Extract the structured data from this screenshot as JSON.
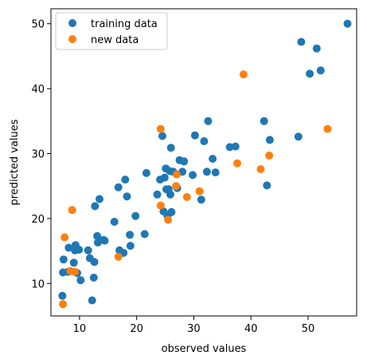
{
  "chart_data": {
    "type": "scatter",
    "title": "",
    "xlabel": "observed values",
    "ylabel": "predicted values",
    "xlim": [
      5,
      58.5
    ],
    "ylim": [
      5,
      52.3
    ],
    "xticks": [
      10,
      20,
      30,
      40,
      50
    ],
    "yticks": [
      10,
      20,
      30,
      40,
      50
    ],
    "grid": false,
    "legend": "top-left",
    "series": [
      {
        "name": "training data",
        "color": "#1f77b4",
        "points": [
          [
            7.0,
            8.1
          ],
          [
            7.1,
            11.7
          ],
          [
            7.2,
            13.7
          ],
          [
            8.0,
            11.8
          ],
          [
            8.1,
            15.5
          ],
          [
            9.0,
            13.2
          ],
          [
            9.2,
            15.1
          ],
          [
            9.3,
            15.9
          ],
          [
            9.6,
            11.6
          ],
          [
            9.9,
            15.2
          ],
          [
            10.2,
            10.5
          ],
          [
            11.5,
            15.1
          ],
          [
            11.8,
            13.9
          ],
          [
            12.2,
            7.4
          ],
          [
            12.5,
            10.9
          ],
          [
            12.6,
            13.3
          ],
          [
            12.7,
            21.9
          ],
          [
            13.1,
            17.3
          ],
          [
            13.2,
            16.3
          ],
          [
            13.5,
            23.0
          ],
          [
            14.2,
            16.7
          ],
          [
            14.4,
            16.6
          ],
          [
            16.1,
            19.5
          ],
          [
            16.8,
            24.8
          ],
          [
            17.0,
            15.1
          ],
          [
            17.7,
            14.7
          ],
          [
            18.0,
            26.0
          ],
          [
            18.3,
            23.4
          ],
          [
            18.8,
            17.5
          ],
          [
            18.9,
            15.8
          ],
          [
            19.8,
            20.4
          ],
          [
            21.4,
            17.6
          ],
          [
            21.7,
            27.0
          ],
          [
            23.6,
            23.7
          ],
          [
            24.1,
            26.0
          ],
          [
            24.5,
            32.7
          ],
          [
            24.7,
            21.1
          ],
          [
            24.9,
            26.3
          ],
          [
            25.1,
            27.7
          ],
          [
            25.2,
            24.5
          ],
          [
            25.4,
            20.4
          ],
          [
            25.6,
            24.5
          ],
          [
            25.8,
            27.3
          ],
          [
            25.9,
            23.7
          ],
          [
            26.0,
            30.9
          ],
          [
            26.1,
            21.0
          ],
          [
            26.4,
            27.2
          ],
          [
            27.1,
            24.7
          ],
          [
            27.5,
            29.0
          ],
          [
            28.0,
            27.2
          ],
          [
            28.3,
            28.8
          ],
          [
            29.8,
            26.7
          ],
          [
            30.2,
            32.8
          ],
          [
            31.3,
            22.9
          ],
          [
            31.8,
            31.9
          ],
          [
            32.3,
            27.2
          ],
          [
            32.5,
            35.0
          ],
          [
            33.3,
            29.2
          ],
          [
            33.8,
            27.1
          ],
          [
            36.3,
            31.0
          ],
          [
            37.3,
            31.1
          ],
          [
            42.3,
            35.0
          ],
          [
            42.8,
            25.1
          ],
          [
            43.3,
            32.1
          ],
          [
            48.3,
            32.6
          ],
          [
            48.8,
            47.2
          ],
          [
            50.3,
            42.3
          ],
          [
            51.5,
            46.2
          ],
          [
            52.2,
            42.8
          ],
          [
            56.9,
            50.0
          ]
        ]
      },
      {
        "name": "new data",
        "color": "#ff7f0e",
        "points": [
          [
            7.1,
            6.8
          ],
          [
            7.4,
            17.1
          ],
          [
            8.7,
            21.3
          ],
          [
            8.4,
            11.9
          ],
          [
            9.2,
            11.8
          ],
          [
            16.8,
            14.1
          ],
          [
            24.2,
            33.8
          ],
          [
            24.2,
            22.0
          ],
          [
            25.5,
            19.8
          ],
          [
            27.0,
            26.8
          ],
          [
            26.9,
            25.0
          ],
          [
            28.8,
            23.3
          ],
          [
            31.0,
            24.2
          ],
          [
            37.6,
            28.5
          ],
          [
            38.7,
            42.2
          ],
          [
            41.7,
            27.6
          ],
          [
            43.2,
            29.7
          ],
          [
            53.4,
            33.8
          ]
        ]
      }
    ]
  }
}
